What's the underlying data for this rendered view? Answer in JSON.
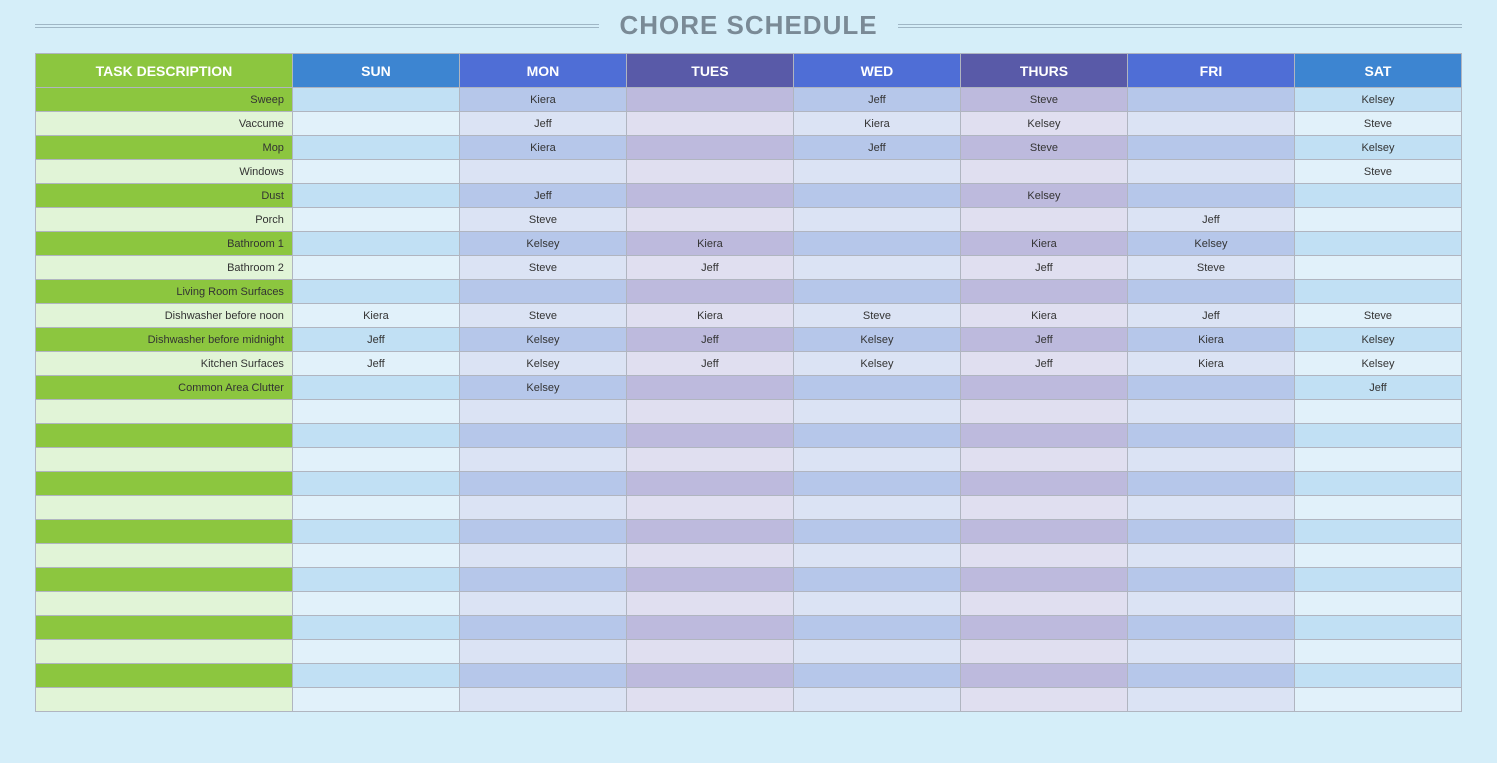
{
  "title": "CHORE SCHEDULE",
  "title_color": "#7a8a96",
  "title_fontsize": 26,
  "background_color": "#d5eef9",
  "rule_color": "#9fb6c5",
  "border_color": "#b0b5c0",
  "row_height_header": 34,
  "row_height_data": 24,
  "header_columns": [
    {
      "label": "TASK DESCRIPTION",
      "bg": "#8cc63f",
      "fg": "#ffffff"
    },
    {
      "label": "SUN",
      "bg": "#3d85d1",
      "fg": "#ffffff"
    },
    {
      "label": "MON",
      "bg": "#4f6ed6",
      "fg": "#ffffff"
    },
    {
      "label": "TUES",
      "bg": "#595aa8",
      "fg": "#ffffff"
    },
    {
      "label": "WED",
      "bg": "#4f6ed6",
      "fg": "#ffffff"
    },
    {
      "label": "THURS",
      "bg": "#595aa8",
      "fg": "#ffffff"
    },
    {
      "label": "FRI",
      "bg": "#4f6ed6",
      "fg": "#ffffff"
    },
    {
      "label": "SAT",
      "bg": "#3d85d1",
      "fg": "#ffffff"
    }
  ],
  "column_colors": {
    "task_odd": "#8cc63f",
    "task_even": "#e1f4d7",
    "sun_odd": "#c1e0f4",
    "sun_even": "#e1f1fa",
    "mon_odd": "#b6c7ea",
    "mon_even": "#dbe3f4",
    "tues_odd": "#bdbadd",
    "tues_even": "#e0dff0",
    "wed_odd": "#b6c7ea",
    "wed_even": "#dbe3f4",
    "thurs_odd": "#bdbadd",
    "thurs_even": "#e0dff0",
    "fri_odd": "#b6c7ea",
    "fri_even": "#dbe3f4",
    "sat_odd": "#c1e0f4",
    "sat_even": "#e1f1fa"
  },
  "rows": [
    {
      "task": "Sweep",
      "sun": "",
      "mon": "Kiera",
      "tues": "",
      "wed": "Jeff",
      "thurs": "Steve",
      "fri": "",
      "sat": "Kelsey"
    },
    {
      "task": "Vaccume",
      "sun": "",
      "mon": "Jeff",
      "tues": "",
      "wed": "Kiera",
      "thurs": "Kelsey",
      "fri": "",
      "sat": "Steve"
    },
    {
      "task": "Mop",
      "sun": "",
      "mon": "Kiera",
      "tues": "",
      "wed": "Jeff",
      "thurs": "Steve",
      "fri": "",
      "sat": "Kelsey"
    },
    {
      "task": "Windows",
      "sun": "",
      "mon": "",
      "tues": "",
      "wed": "",
      "thurs": "",
      "fri": "",
      "sat": "Steve"
    },
    {
      "task": "Dust",
      "sun": "",
      "mon": "Jeff",
      "tues": "",
      "wed": "",
      "thurs": "Kelsey",
      "fri": "",
      "sat": ""
    },
    {
      "task": "Porch",
      "sun": "",
      "mon": "Steve",
      "tues": "",
      "wed": "",
      "thurs": "",
      "fri": "Jeff",
      "sat": ""
    },
    {
      "task": "Bathroom 1",
      "sun": "",
      "mon": "Kelsey",
      "tues": "Kiera",
      "wed": "",
      "thurs": "Kiera",
      "fri": "Kelsey",
      "sat": ""
    },
    {
      "task": "Bathroom 2",
      "sun": "",
      "mon": "Steve",
      "tues": "Jeff",
      "wed": "",
      "thurs": "Jeff",
      "fri": "Steve",
      "sat": ""
    },
    {
      "task": "Living Room Surfaces",
      "sun": "",
      "mon": "",
      "tues": "",
      "wed": "",
      "thurs": "",
      "fri": "",
      "sat": ""
    },
    {
      "task": "Dishwasher before noon",
      "sun": "Kiera",
      "mon": "Steve",
      "tues": "Kiera",
      "wed": "Steve",
      "thurs": "Kiera",
      "fri": "Jeff",
      "sat": "Steve"
    },
    {
      "task": "Dishwasher before midnight",
      "sun": "Jeff",
      "mon": "Kelsey",
      "tues": "Jeff",
      "wed": "Kelsey",
      "thurs": "Jeff",
      "fri": "Kiera",
      "sat": "Kelsey"
    },
    {
      "task": "Kitchen Surfaces",
      "sun": "Jeff",
      "mon": "Kelsey",
      "tues": "Jeff",
      "wed": "Kelsey",
      "thurs": "Jeff",
      "fri": "Kiera",
      "sat": "Kelsey"
    },
    {
      "task": "Common Area Clutter",
      "sun": "",
      "mon": "Kelsey",
      "tues": "",
      "wed": "",
      "thurs": "",
      "fri": "",
      "sat": "Jeff"
    },
    {
      "task": "",
      "sun": "",
      "mon": "",
      "tues": "",
      "wed": "",
      "thurs": "",
      "fri": "",
      "sat": ""
    },
    {
      "task": "",
      "sun": "",
      "mon": "",
      "tues": "",
      "wed": "",
      "thurs": "",
      "fri": "",
      "sat": ""
    },
    {
      "task": "",
      "sun": "",
      "mon": "",
      "tues": "",
      "wed": "",
      "thurs": "",
      "fri": "",
      "sat": ""
    },
    {
      "task": "",
      "sun": "",
      "mon": "",
      "tues": "",
      "wed": "",
      "thurs": "",
      "fri": "",
      "sat": ""
    },
    {
      "task": "",
      "sun": "",
      "mon": "",
      "tues": "",
      "wed": "",
      "thurs": "",
      "fri": "",
      "sat": ""
    },
    {
      "task": "",
      "sun": "",
      "mon": "",
      "tues": "",
      "wed": "",
      "thurs": "",
      "fri": "",
      "sat": ""
    },
    {
      "task": "",
      "sun": "",
      "mon": "",
      "tues": "",
      "wed": "",
      "thurs": "",
      "fri": "",
      "sat": ""
    },
    {
      "task": "",
      "sun": "",
      "mon": "",
      "tues": "",
      "wed": "",
      "thurs": "",
      "fri": "",
      "sat": ""
    },
    {
      "task": "",
      "sun": "",
      "mon": "",
      "tues": "",
      "wed": "",
      "thurs": "",
      "fri": "",
      "sat": ""
    },
    {
      "task": "",
      "sun": "",
      "mon": "",
      "tues": "",
      "wed": "",
      "thurs": "",
      "fri": "",
      "sat": ""
    },
    {
      "task": "",
      "sun": "",
      "mon": "",
      "tues": "",
      "wed": "",
      "thurs": "",
      "fri": "",
      "sat": ""
    },
    {
      "task": "",
      "sun": "",
      "mon": "",
      "tues": "",
      "wed": "",
      "thurs": "",
      "fri": "",
      "sat": ""
    },
    {
      "task": "",
      "sun": "",
      "mon": "",
      "tues": "",
      "wed": "",
      "thurs": "",
      "fri": "",
      "sat": ""
    }
  ]
}
